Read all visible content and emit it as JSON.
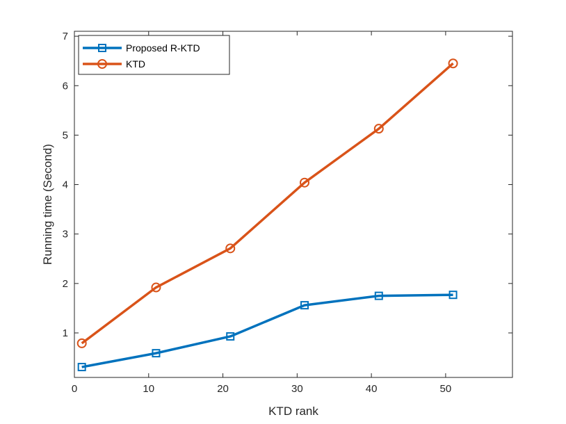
{
  "chart_data": {
    "type": "line",
    "title": "",
    "xlabel": "KTD rank",
    "ylabel": "Running time (Second)",
    "xlim": [
      0,
      59
    ],
    "ylim": [
      0.1,
      7.1
    ],
    "xticks": [
      0,
      10,
      20,
      30,
      40,
      50
    ],
    "yticks": [
      1,
      2,
      3,
      4,
      5,
      6,
      7
    ],
    "grid": false,
    "legend_position": "top-left",
    "x": [
      1,
      11,
      21,
      31,
      41,
      51
    ],
    "series": [
      {
        "name": "Proposed R-KTD",
        "color": "#0072BD",
        "marker": "square",
        "values": [
          0.31,
          0.59,
          0.93,
          1.56,
          1.75,
          1.77
        ]
      },
      {
        "name": "KTD",
        "color": "#D95319",
        "marker": "circle",
        "values": [
          0.79,
          1.92,
          2.71,
          4.04,
          5.13,
          6.45
        ]
      }
    ]
  }
}
